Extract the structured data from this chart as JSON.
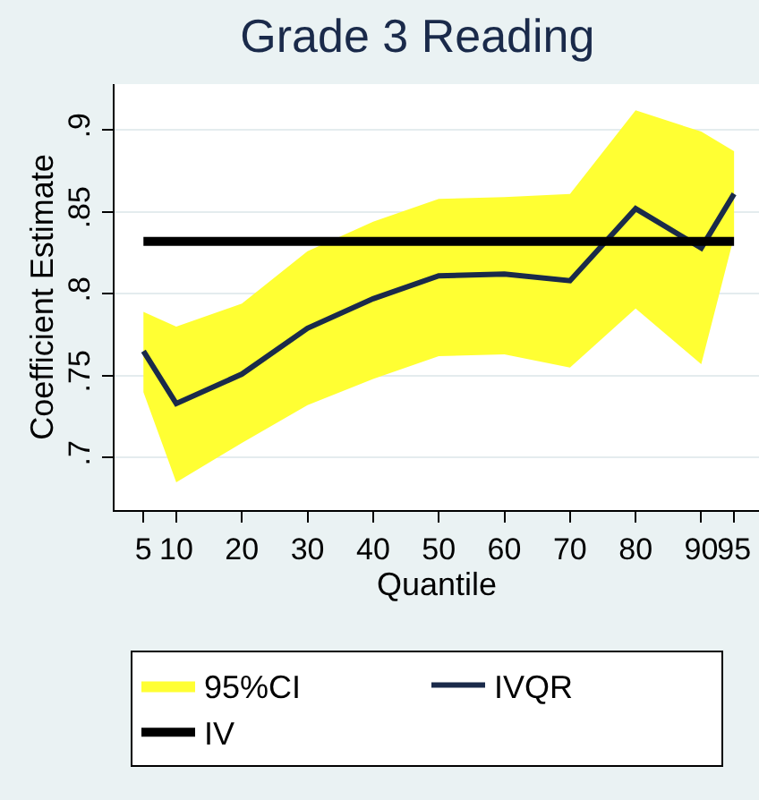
{
  "chart_data": {
    "type": "line",
    "title": "Grade 3 Reading",
    "xlabel": "Quantile",
    "ylabel": "Coefficient Estimate",
    "x": [
      5,
      10,
      20,
      30,
      40,
      50,
      60,
      70,
      80,
      90,
      95
    ],
    "series": [
      {
        "name": "95%CI",
        "type": "area",
        "color": "#ffff33",
        "values": [
          null,
          null,
          null,
          null,
          null,
          null,
          null,
          null,
          null,
          null,
          null
        ],
        "lower": [
          0.74,
          0.685,
          0.709,
          0.732,
          0.748,
          0.762,
          0.763,
          0.755,
          0.791,
          0.757,
          0.835
        ],
        "upper": [
          0.789,
          0.78,
          0.794,
          0.826,
          0.844,
          0.858,
          0.859,
          0.861,
          0.912,
          0.899,
          0.887
        ]
      },
      {
        "name": "IVQR",
        "color": "#1a2a4a",
        "values": [
          0.765,
          0.733,
          0.751,
          0.779,
          0.797,
          0.811,
          0.812,
          0.808,
          0.852,
          0.828,
          0.861
        ]
      },
      {
        "name": "IV",
        "color": "#000000",
        "values": [
          0.832,
          0.832,
          0.832,
          0.832,
          0.832,
          0.832,
          0.832,
          0.832,
          0.832,
          0.832,
          0.832
        ]
      }
    ],
    "xlim": [
      0.6,
      98.8
    ],
    "ylim": [
      0.668,
      0.928
    ],
    "xticks": [
      5,
      10,
      20,
      30,
      40,
      50,
      60,
      70,
      80,
      90,
      95
    ],
    "yticks": [
      {
        "value": 0.7,
        "label": ".7"
      },
      {
        "value": 0.75,
        "label": ".75"
      },
      {
        "value": 0.8,
        "label": ".8"
      },
      {
        "value": 0.85,
        "label": ".85"
      },
      {
        "value": 0.9,
        "label": ".9"
      }
    ],
    "grid": "y",
    "legend": "bottom"
  }
}
